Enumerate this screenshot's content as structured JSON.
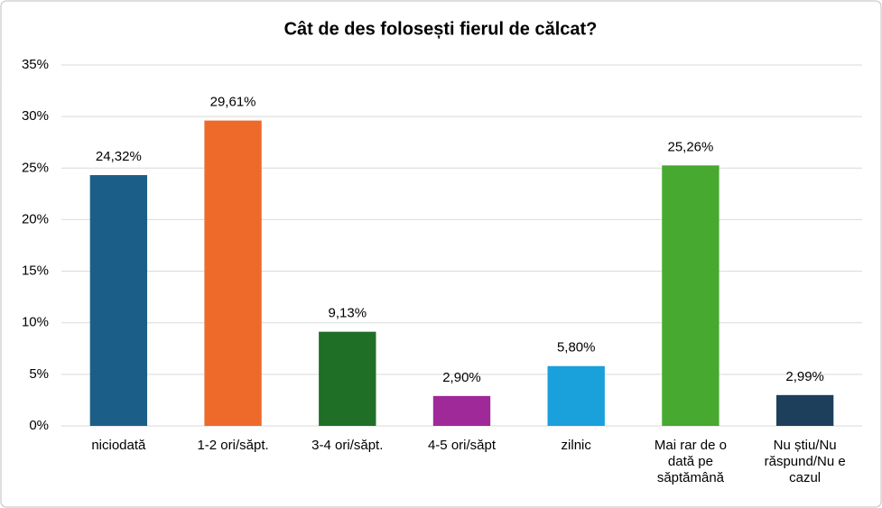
{
  "chart_data": {
    "type": "bar",
    "title": "Cât de des folosești fierul de călcat?",
    "categories": [
      "niciodată",
      "1-2 ori/săpt.",
      "3-4 ori/săpt.",
      "4-5 ori/săpt",
      "zilnic",
      "Mai rar de o dată pe săptămână",
      "Nu știu/Nu răspund/Nu e cazul"
    ],
    "values": [
      24.32,
      29.61,
      9.13,
      2.9,
      5.8,
      25.26,
      2.99
    ],
    "value_labels": [
      "24,32%",
      "29,61%",
      "9,13%",
      "2,90%",
      "5,80%",
      "25,26%",
      "2,99%"
    ],
    "colors": [
      "#1b5f88",
      "#ee6a2b",
      "#1f6f27",
      "#a0299a",
      "#1aa1dc",
      "#47a92f",
      "#1d3f5b"
    ],
    "ylim": [
      0,
      35
    ],
    "yticks": [
      {
        "value": 0,
        "label": "0%"
      },
      {
        "value": 5,
        "label": "5%"
      },
      {
        "value": 10,
        "label": "10%"
      },
      {
        "value": 15,
        "label": "15%"
      },
      {
        "value": 20,
        "label": "20%"
      },
      {
        "value": 25,
        "label": "25%"
      },
      {
        "value": 30,
        "label": "30%"
      },
      {
        "value": 35,
        "label": "35%"
      }
    ],
    "grid": true
  }
}
